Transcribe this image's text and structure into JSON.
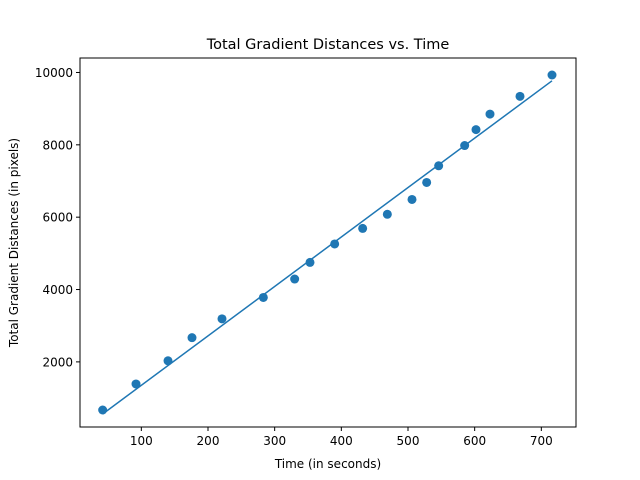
{
  "chart_data": {
    "type": "scatter",
    "title": "Total Gradient Distances vs. Time",
    "xlabel": "Time (in seconds)",
    "ylabel": "Total Gradient Distances (in pixels)",
    "xlim": [
      8,
      752
    ],
    "ylim": [
      200,
      10400
    ],
    "xticks": [
      100,
      200,
      300,
      400,
      500,
      600,
      700
    ],
    "yticks": [
      2000,
      4000,
      6000,
      8000,
      10000
    ],
    "grid": false,
    "marker_color": "#1f77b4",
    "line_color": "#1f77b4",
    "points": [
      {
        "x": 42,
        "y": 670
      },
      {
        "x": 92,
        "y": 1390
      },
      {
        "x": 140,
        "y": 2030
      },
      {
        "x": 176,
        "y": 2670
      },
      {
        "x": 221,
        "y": 3190
      },
      {
        "x": 283,
        "y": 3780
      },
      {
        "x": 330,
        "y": 4290
      },
      {
        "x": 353,
        "y": 4750
      },
      {
        "x": 390,
        "y": 5260
      },
      {
        "x": 432,
        "y": 5690
      },
      {
        "x": 469,
        "y": 6080
      },
      {
        "x": 506,
        "y": 6490
      },
      {
        "x": 528,
        "y": 6960
      },
      {
        "x": 546,
        "y": 7420
      },
      {
        "x": 585,
        "y": 7980
      },
      {
        "x": 602,
        "y": 8420
      },
      {
        "x": 623,
        "y": 8850
      },
      {
        "x": 668,
        "y": 9340
      },
      {
        "x": 716,
        "y": 9930
      }
    ],
    "fit_line": {
      "x": [
        42,
        716
      ],
      "y": [
        560,
        9770
      ]
    }
  }
}
